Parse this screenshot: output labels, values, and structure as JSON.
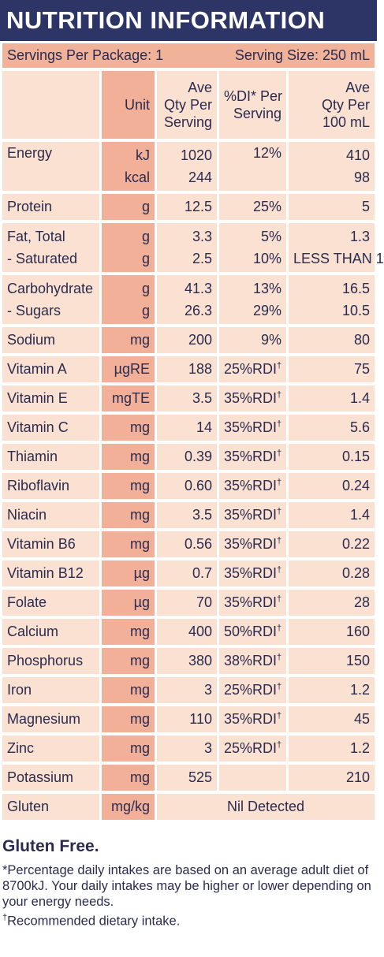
{
  "title": "NUTRITION INFORMATION",
  "servings_per_package": "Servings Per Package: 1",
  "serving_size": "Serving Size: 250 mL",
  "headers": {
    "unit": "Unit",
    "per_serving_1": "Ave",
    "per_serving_2": "Qty Per",
    "per_serving_3": "Serving",
    "di_1": "%DI* Per",
    "di_2": "Serving",
    "per100_1": "Ave",
    "per100_2": "Qty Per",
    "per100_3": "100 mL"
  },
  "rows": {
    "energy": {
      "name": "Energy",
      "unit_a": "kJ",
      "unit_b": "kcal",
      "serv_a": "1020",
      "serv_b": "244",
      "di": "12%",
      "per100_a": "410",
      "per100_b": "98"
    },
    "protein": {
      "name": "Protein",
      "unit": "g",
      "serv": "12.5",
      "di": "25%",
      "per100": "5"
    },
    "fat": {
      "name_a": "Fat, Total",
      "name_b": "- Saturated",
      "unit_a": "g",
      "unit_b": "g",
      "serv_a": "3.3",
      "serv_b": "2.5",
      "di_a": "5%",
      "di_b": "10%",
      "per100_a": "1.3",
      "per100_b": "LESS THAN 1"
    },
    "carb": {
      "name_a": "Carbohydrate",
      "name_b": "- Sugars",
      "unit_a": "g",
      "unit_b": "g",
      "serv_a": "41.3",
      "serv_b": "26.3",
      "di_a": "13%",
      "di_b": "29%",
      "per100_a": "16.5",
      "per100_b": "10.5"
    },
    "sodium": {
      "name": "Sodium",
      "unit": "mg",
      "serv": "200",
      "di": "9%",
      "per100": "80"
    },
    "vita": {
      "name": "Vitamin A",
      "unit": "µgRE",
      "serv": "188",
      "di": "25%RDI",
      "per100": "75"
    },
    "vite": {
      "name": "Vitamin E",
      "unit": "mgTE",
      "serv": "3.5",
      "di": "35%RDI",
      "per100": "1.4"
    },
    "vitc": {
      "name": "Vitamin C",
      "unit": "mg",
      "serv": "14",
      "di": "35%RDI",
      "per100": "5.6"
    },
    "thiamin": {
      "name": "Thiamin",
      "unit": "mg",
      "serv": "0.39",
      "di": "35%RDI",
      "per100": "0.15"
    },
    "riboflavin": {
      "name": "Riboflavin",
      "unit": "mg",
      "serv": "0.60",
      "di": "35%RDI",
      "per100": "0.24"
    },
    "niacin": {
      "name": "Niacin",
      "unit": "mg",
      "serv": "3.5",
      "di": "35%RDI",
      "per100": "1.4"
    },
    "vitb6": {
      "name": "Vitamin B6",
      "unit": "mg",
      "serv": "0.56",
      "di": "35%RDI",
      "per100": "0.22"
    },
    "vitb12": {
      "name": "Vitamin B12",
      "unit": "µg",
      "serv": "0.7",
      "di": "35%RDI",
      "per100": "0.28"
    },
    "folate": {
      "name": "Folate",
      "unit": "µg",
      "serv": "70",
      "di": "35%RDI",
      "per100": "28"
    },
    "calcium": {
      "name": "Calcium",
      "unit": "mg",
      "serv": "400",
      "di": "50%RDI",
      "per100": "160"
    },
    "phosphorus": {
      "name": "Phosphorus",
      "unit": "mg",
      "serv": "380",
      "di": "38%RDI",
      "per100": "150"
    },
    "iron": {
      "name": "Iron",
      "unit": "mg",
      "serv": "3",
      "di": "25%RDI",
      "per100": "1.2"
    },
    "magnesium": {
      "name": "Magnesium",
      "unit": "mg",
      "serv": "110",
      "di": "35%RDI",
      "per100": "45"
    },
    "zinc": {
      "name": "Zinc",
      "unit": "mg",
      "serv": "3",
      "di": "25%RDI",
      "per100": "1.2"
    },
    "potassium": {
      "name": "Potassium",
      "unit": "mg",
      "serv": "525",
      "di": "",
      "per100": "210"
    },
    "gluten": {
      "name": "Gluten",
      "unit": "mg/kg",
      "merged": "Nil Detected"
    }
  },
  "dagger": "†",
  "gluten_free": "Gluten Free.",
  "footnote_di": "*Percentage daily intakes are based on an average adult diet of 8700kJ. Your daily intakes may be higher or lower depending on your energy needs.",
  "footnote_rdi": "Recommended dietary intake.",
  "colors": {
    "title_bg": "#2d3566",
    "text": "#2b2b4f",
    "light_cell": "#fbe1d2",
    "dark_cell": "#f2b099",
    "serving_bar": "#f1b29a"
  }
}
